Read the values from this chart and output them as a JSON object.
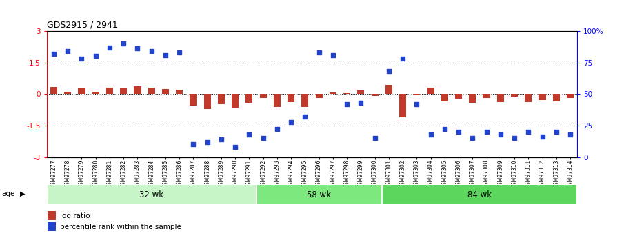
{
  "title": "GDS2915 / 2941",
  "samples": [
    "GSM97277",
    "GSM97278",
    "GSM97279",
    "GSM97280",
    "GSM97281",
    "GSM97282",
    "GSM97283",
    "GSM97284",
    "GSM97285",
    "GSM97286",
    "GSM97287",
    "GSM97288",
    "GSM97289",
    "GSM97290",
    "GSM97291",
    "GSM97292",
    "GSM97293",
    "GSM97294",
    "GSM97295",
    "GSM97296",
    "GSM97297",
    "GSM97298",
    "GSM97299",
    "GSM97300",
    "GSM97301",
    "GSM97302",
    "GSM97303",
    "GSM97304",
    "GSM97305",
    "GSM97306",
    "GSM97307",
    "GSM97308",
    "GSM97309",
    "GSM97310",
    "GSM97311",
    "GSM97312",
    "GSM97313",
    "GSM97314"
  ],
  "log_ratio": [
    0.35,
    0.12,
    0.28,
    0.1,
    0.32,
    0.27,
    0.38,
    0.3,
    0.25,
    0.22,
    -0.55,
    -0.7,
    -0.48,
    -0.65,
    -0.42,
    -0.18,
    -0.62,
    -0.38,
    -0.6,
    -0.2,
    0.08,
    0.05,
    0.18,
    -0.08,
    0.45,
    -1.1,
    -0.05,
    0.3,
    -0.35,
    -0.22,
    -0.42,
    -0.18,
    -0.38,
    -0.12,
    -0.4,
    -0.3,
    -0.35,
    -0.2
  ],
  "percentile": [
    82,
    84,
    78,
    80,
    87,
    90,
    86,
    84,
    81,
    83,
    10,
    12,
    14,
    8,
    18,
    15,
    22,
    28,
    32,
    83,
    81,
    42,
    43,
    15,
    68,
    78,
    42,
    18,
    22,
    20,
    15,
    20,
    18,
    15,
    20,
    16,
    20,
    18
  ],
  "groups": [
    {
      "label": "32 wk",
      "start": 0,
      "end": 15,
      "color": "#c8f5c8"
    },
    {
      "label": "58 wk",
      "start": 15,
      "end": 24,
      "color": "#7de87d"
    },
    {
      "label": "84 wk",
      "start": 24,
      "end": 38,
      "color": "#5cd65c"
    }
  ],
  "bar_color": "#c0392b",
  "dot_color": "#2244cc",
  "age_label": "age",
  "legend_log_ratio": "log ratio",
  "legend_percentile": "percentile rank within the sample"
}
